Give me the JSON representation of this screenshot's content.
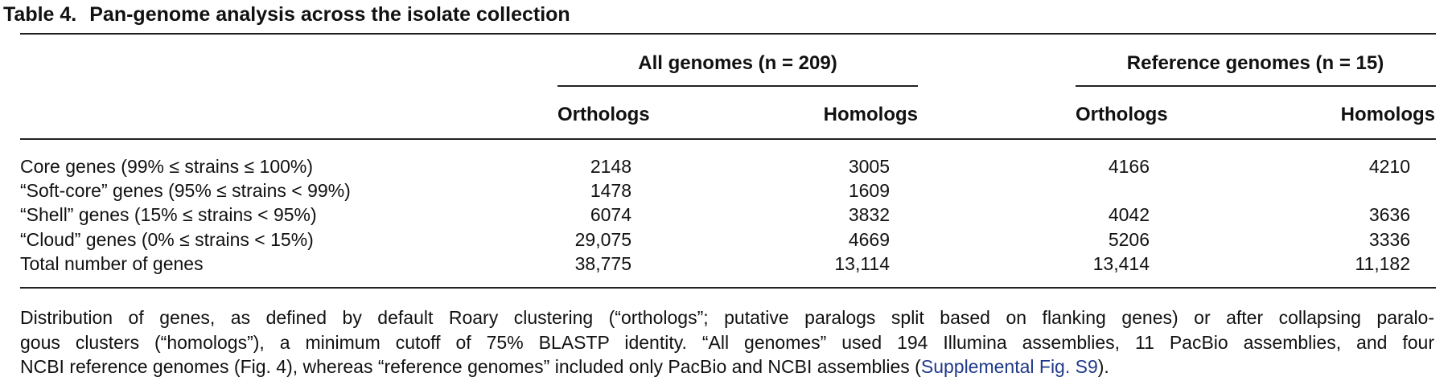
{
  "table_title": {
    "label": "Table 4.",
    "text": "Pan-genome analysis across the isolate collection"
  },
  "groups": [
    "All genomes (n = 209)",
    "Reference genomes (n = 15)"
  ],
  "columns": [
    "Orthologs",
    "Homologs",
    "Orthologs",
    "Homologs"
  ],
  "rows": [
    {
      "label": "Core genes (99% ≤ strains ≤ 100%)",
      "cells": [
        "2148",
        "3005",
        "4166",
        "4210"
      ]
    },
    {
      "label": "“Soft-core” genes (95% ≤ strains < 99%)",
      "cells": [
        "1478",
        "1609",
        null,
        null
      ]
    },
    {
      "label": "“Shell” genes (15% ≤ strains < 95%)",
      "cells": [
        "6074",
        "3832",
        "4042",
        "3636"
      ]
    },
    {
      "label": "“Cloud” genes (0% ≤ strains < 15%)",
      "cells": [
        "29,075",
        "4669",
        "5206",
        "3336"
      ]
    },
    {
      "label": "Total number of genes",
      "cells": [
        "38,775",
        "13,114",
        "13,414",
        "11,182"
      ]
    }
  ],
  "footnote": {
    "lines": [
      "Distribution of genes, as defined by default Roary clustering (“orthologs”; putative paralogs split based on flanking genes) or after collapsing paralo-",
      "gous clusters (“homologs”), a minimum cutoff of 75% BLASTP identity. “All genomes” used 194 Illumina assemblies, 11 PacBio assemblies, and four",
      "NCBI reference genomes (Fig. 4), whereas “reference genomes” included only PacBio and NCBI assemblies ("
    ],
    "link": "Supplemental Fig. S9",
    "end": ")."
  }
}
